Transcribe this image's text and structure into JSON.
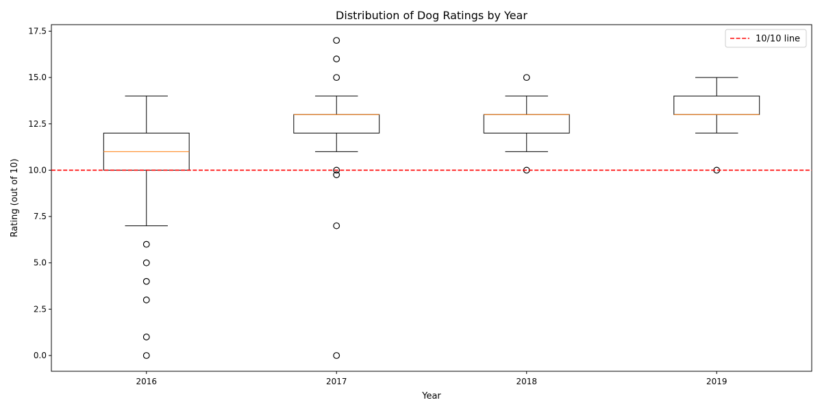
{
  "chart_data": {
    "type": "box",
    "title": "Distribution of Dog Ratings by Year",
    "xlabel": "Year",
    "ylabel": "Rating (out of 10)",
    "categories": [
      "2016",
      "2017",
      "2018",
      "2019"
    ],
    "ylim": [
      -0.85,
      17.85
    ],
    "yticks": [
      0.0,
      2.5,
      5.0,
      7.5,
      10.0,
      12.5,
      15.0,
      17.5
    ],
    "ytick_labels": [
      "0.0",
      "2.5",
      "5.0",
      "7.5",
      "10.0",
      "12.5",
      "15.0",
      "17.5"
    ],
    "boxes": [
      {
        "category": "2016",
        "whisker_low": 7,
        "q1": 10,
        "median": 11,
        "q3": 12,
        "whisker_high": 14,
        "outliers": [
          6,
          5,
          4,
          3,
          1,
          0
        ]
      },
      {
        "category": "2017",
        "whisker_low": 11,
        "q1": 12,
        "median": 13,
        "q3": 13,
        "whisker_high": 14,
        "outliers": [
          17,
          16,
          15,
          10,
          9.75,
          7,
          0
        ]
      },
      {
        "category": "2018",
        "whisker_low": 11,
        "q1": 12,
        "median": 13,
        "q3": 13,
        "whisker_high": 14,
        "outliers": [
          15,
          10
        ]
      },
      {
        "category": "2019",
        "whisker_low": 12,
        "q1": 13,
        "median": 13,
        "q3": 14,
        "whisker_high": 15,
        "outliers": [
          10
        ]
      }
    ],
    "reference_line": {
      "y": 10,
      "label": "10/10 line",
      "color": "#ff0000",
      "style": "dashed"
    },
    "legend": {
      "position": "top-right",
      "entries": [
        "10/10 line"
      ]
    },
    "grid": false,
    "colors": {
      "box": "#000000",
      "median": "#ff7f0e",
      "reference": "#ff0000"
    }
  }
}
